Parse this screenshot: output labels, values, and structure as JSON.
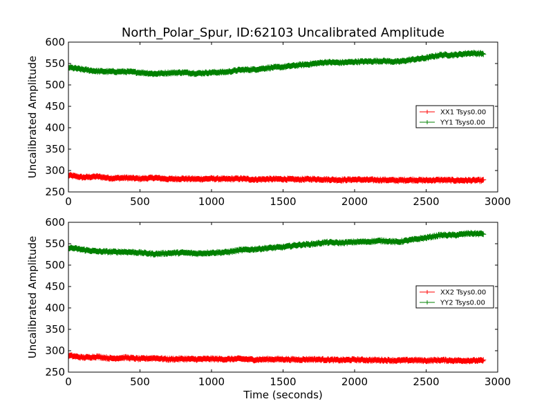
{
  "chart_data": [
    {
      "type": "line",
      "title": "North_Polar_Spur, ID:62103 Uncalibrated Amplitude",
      "xlabel": "",
      "ylabel": "Uncalibrated Amplitude",
      "xlim": [
        0,
        3000
      ],
      "ylim": [
        250,
        600
      ],
      "xticks": [
        "0",
        "500",
        "1000",
        "1500",
        "2000",
        "2500",
        "3000"
      ],
      "yticks": [
        "250",
        "300",
        "350",
        "400",
        "450",
        "500",
        "550",
        "600"
      ],
      "grid": false,
      "legend_position": "center-right",
      "marker": "+",
      "series": [
        {
          "name": "XX1 Tsys0.00",
          "color": "#ff0000",
          "x": [
            0,
            100,
            200,
            300,
            400,
            500,
            600,
            700,
            800,
            900,
            1000,
            1100,
            1200,
            1300,
            1400,
            1500,
            1600,
            1700,
            1800,
            1900,
            2000,
            2100,
            2200,
            2300,
            2400,
            2500,
            2600,
            2700,
            2800,
            2900
          ],
          "values": [
            289,
            284,
            286,
            282,
            283,
            281,
            283,
            280,
            281,
            280,
            281,
            280,
            281,
            279,
            280,
            280,
            279,
            280,
            279,
            278,
            279,
            278,
            278,
            277,
            278,
            277,
            278,
            277,
            277,
            277
          ]
        },
        {
          "name": "YY1 Tsys0.00",
          "color": "#008000",
          "x": [
            0,
            100,
            200,
            300,
            400,
            500,
            600,
            700,
            800,
            900,
            1000,
            1100,
            1200,
            1300,
            1400,
            1500,
            1600,
            1700,
            1800,
            1900,
            2000,
            2100,
            2200,
            2300,
            2400,
            2500,
            2600,
            2700,
            2800,
            2900
          ],
          "values": [
            541,
            536,
            532,
            531,
            531,
            529,
            526,
            528,
            529,
            527,
            529,
            530,
            535,
            536,
            540,
            542,
            546,
            549,
            553,
            552,
            554,
            555,
            556,
            554,
            559,
            563,
            570,
            570,
            574,
            573
          ]
        }
      ]
    },
    {
      "type": "line",
      "title": "",
      "xlabel": "Time (seconds)",
      "ylabel": "Uncalibrated Amplitude",
      "xlim": [
        0,
        3000
      ],
      "ylim": [
        250,
        600
      ],
      "xticks": [
        "0",
        "500",
        "1000",
        "1500",
        "2000",
        "2500",
        "3000"
      ],
      "yticks": [
        "250",
        "300",
        "350",
        "400",
        "450",
        "500",
        "550",
        "600"
      ],
      "grid": false,
      "legend_position": "center-right",
      "marker": "+",
      "series": [
        {
          "name": "XX2 Tsys0.00",
          "color": "#ff0000",
          "x": [
            0,
            100,
            200,
            300,
            400,
            500,
            600,
            700,
            800,
            900,
            1000,
            1100,
            1200,
            1300,
            1400,
            1500,
            1600,
            1700,
            1800,
            1900,
            2000,
            2100,
            2200,
            2300,
            2400,
            2500,
            2600,
            2700,
            2800,
            2900
          ],
          "values": [
            289,
            284,
            286,
            282,
            284,
            281,
            283,
            280,
            281,
            280,
            281,
            280,
            281,
            279,
            280,
            280,
            279,
            280,
            279,
            278,
            279,
            278,
            278,
            277,
            278,
            277,
            278,
            277,
            277,
            277
          ]
        },
        {
          "name": "YY2 Tsys0.00",
          "color": "#008000",
          "x": [
            0,
            100,
            200,
            300,
            400,
            500,
            600,
            700,
            800,
            900,
            1000,
            1100,
            1200,
            1300,
            1400,
            1500,
            1600,
            1700,
            1800,
            1900,
            2000,
            2100,
            2200,
            2300,
            2400,
            2500,
            2600,
            2700,
            2800,
            2900
          ],
          "values": [
            541,
            536,
            532,
            531,
            531,
            529,
            526,
            528,
            529,
            527,
            529,
            530,
            535,
            537,
            540,
            542,
            547,
            549,
            553,
            552,
            554,
            555,
            557,
            554,
            559,
            564,
            570,
            570,
            574,
            573
          ]
        }
      ]
    }
  ]
}
